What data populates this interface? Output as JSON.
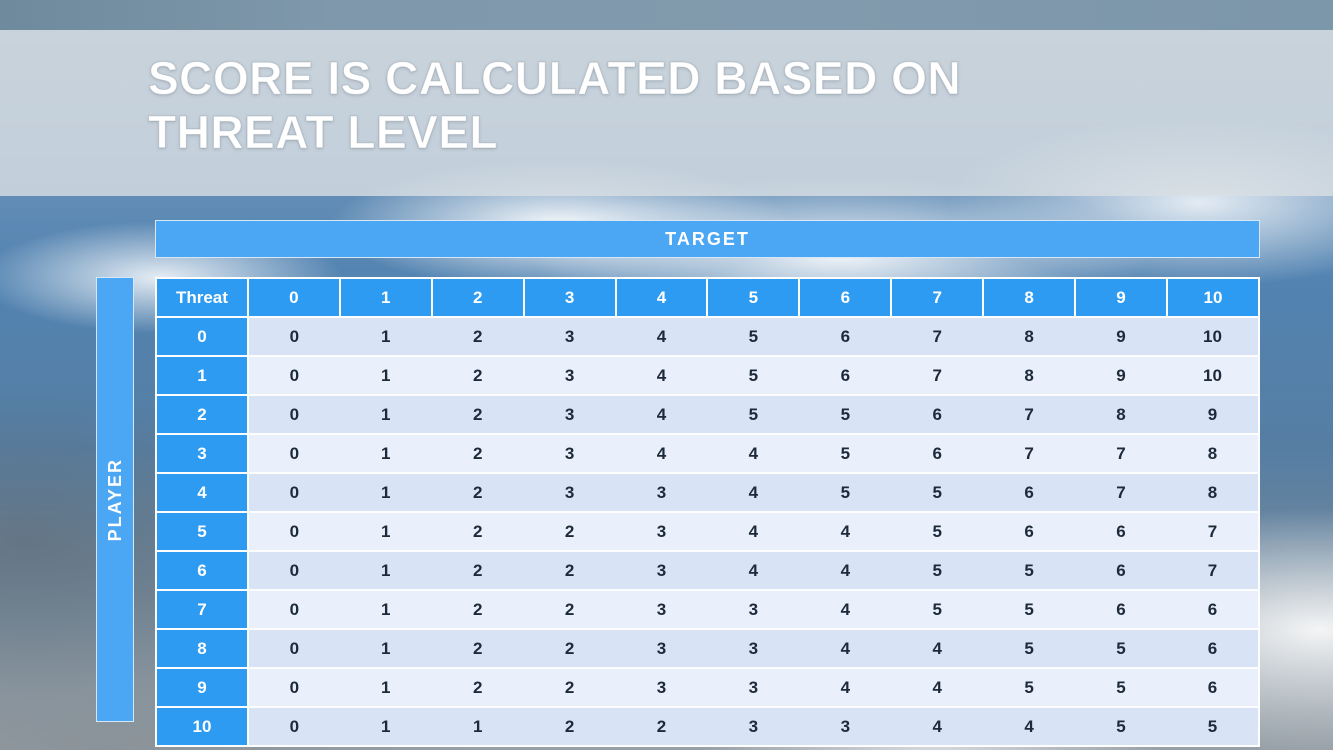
{
  "slide": {
    "title_line1": "SCORE IS CALCULATED BASED ON",
    "title_line2": "THREAT LEVEL"
  },
  "matrix": {
    "target_label": "TARGET",
    "player_label": "PLAYER",
    "corner_label": "Threat",
    "column_headers": [
      "0",
      "1",
      "2",
      "3",
      "4",
      "5",
      "6",
      "7",
      "8",
      "9",
      "10"
    ],
    "rows": [
      {
        "header": "0",
        "values": [
          "0",
          "1",
          "2",
          "3",
          "4",
          "5",
          "6",
          "7",
          "8",
          "9",
          "10"
        ]
      },
      {
        "header": "1",
        "values": [
          "0",
          "1",
          "2",
          "3",
          "4",
          "5",
          "6",
          "7",
          "8",
          "9",
          "10"
        ]
      },
      {
        "header": "2",
        "values": [
          "0",
          "1",
          "2",
          "3",
          "4",
          "5",
          "5",
          "6",
          "7",
          "8",
          "9"
        ]
      },
      {
        "header": "3",
        "values": [
          "0",
          "1",
          "2",
          "3",
          "4",
          "4",
          "5",
          "6",
          "7",
          "7",
          "8"
        ]
      },
      {
        "header": "4",
        "values": [
          "0",
          "1",
          "2",
          "3",
          "3",
          "4",
          "5",
          "5",
          "6",
          "7",
          "8"
        ]
      },
      {
        "header": "5",
        "values": [
          "0",
          "1",
          "2",
          "2",
          "3",
          "4",
          "4",
          "5",
          "6",
          "6",
          "7"
        ]
      },
      {
        "header": "6",
        "values": [
          "0",
          "1",
          "2",
          "2",
          "3",
          "4",
          "4",
          "5",
          "5",
          "6",
          "7"
        ]
      },
      {
        "header": "7",
        "values": [
          "0",
          "1",
          "2",
          "2",
          "3",
          "3",
          "4",
          "5",
          "5",
          "6",
          "6"
        ]
      },
      {
        "header": "8",
        "values": [
          "0",
          "1",
          "2",
          "2",
          "3",
          "3",
          "4",
          "4",
          "5",
          "5",
          "6"
        ]
      },
      {
        "header": "9",
        "values": [
          "0",
          "1",
          "2",
          "2",
          "3",
          "3",
          "4",
          "4",
          "5",
          "5",
          "6"
        ]
      },
      {
        "header": "10",
        "values": [
          "0",
          "1",
          "1",
          "2",
          "2",
          "3",
          "3",
          "4",
          "4",
          "5",
          "5"
        ]
      }
    ]
  },
  "colors": {
    "header_blue": "#2d9bf1",
    "banner_blue": "#4ba6f4",
    "row_band_a": "#d9e3f6",
    "row_band_b": "#e9effb",
    "cell_text": "#1d2a3a",
    "title_text": "#ffffff",
    "title_band": "#d8dee3",
    "top_strip": "#7f98ab"
  }
}
